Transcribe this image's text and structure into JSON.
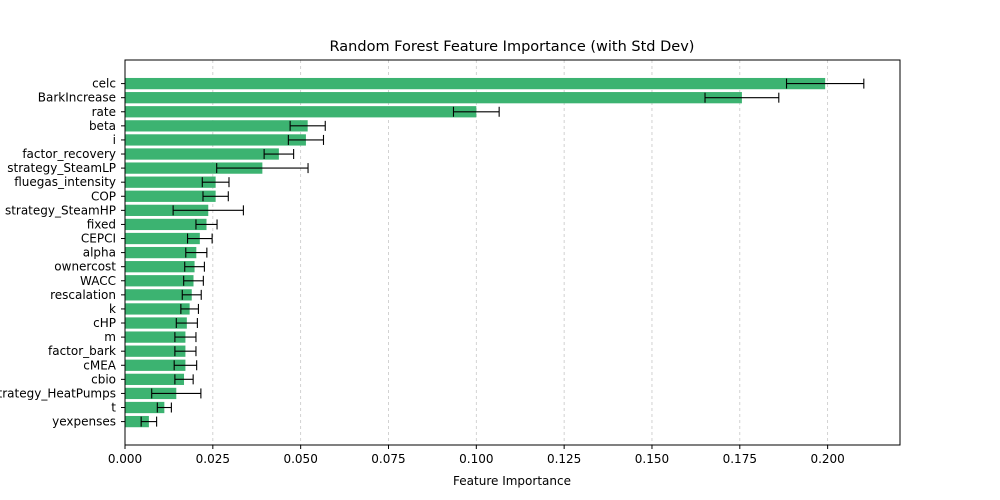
{
  "chart_data": {
    "type": "bar",
    "orientation": "horizontal",
    "title": "Random Forest Feature Importance (with Std Dev)",
    "xlabel": "Feature Importance",
    "ylabel": "",
    "xlim": [
      0.0,
      0.2206
    ],
    "xticks": [
      0.0,
      0.025,
      0.05,
      0.075,
      0.1,
      0.125,
      0.15,
      0.175,
      0.2
    ],
    "xtick_labels": [
      "0.000",
      "0.025",
      "0.050",
      "0.075",
      "0.100",
      "0.125",
      "0.150",
      "0.175",
      "0.200"
    ],
    "grid": "x dashed",
    "bar_color": "#3cb371",
    "errorbar_color": "#000000",
    "categories": [
      "celc",
      "BarkIncrease",
      "rate",
      "beta",
      "i",
      "factor_recovery",
      "strategy_SteamLP",
      "fluegas_intensity",
      "COP",
      "strategy_SteamHP",
      "fixed",
      "CEPCI",
      "alpha",
      "ownercost",
      "WACC",
      "rescalation",
      "k",
      "cHP",
      "m",
      "factor_bark",
      "cMEA",
      "cbio",
      "strategy_HeatPumps",
      "t",
      "yexpenses"
    ],
    "values": [
      0.1993,
      0.1756,
      0.1,
      0.052,
      0.0515,
      0.0438,
      0.0391,
      0.0258,
      0.0258,
      0.0237,
      0.0232,
      0.0213,
      0.0203,
      0.0198,
      0.0195,
      0.019,
      0.0184,
      0.0176,
      0.0172,
      0.0172,
      0.0172,
      0.0168,
      0.0146,
      0.0112,
      0.0068
    ],
    "std": [
      0.011,
      0.0105,
      0.0065,
      0.005,
      0.005,
      0.0042,
      0.013,
      0.0038,
      0.0036,
      0.01,
      0.003,
      0.0035,
      0.003,
      0.0028,
      0.0028,
      0.0027,
      0.0025,
      0.003,
      0.003,
      0.003,
      0.0032,
      0.0026,
      0.007,
      0.002,
      0.0022
    ]
  }
}
